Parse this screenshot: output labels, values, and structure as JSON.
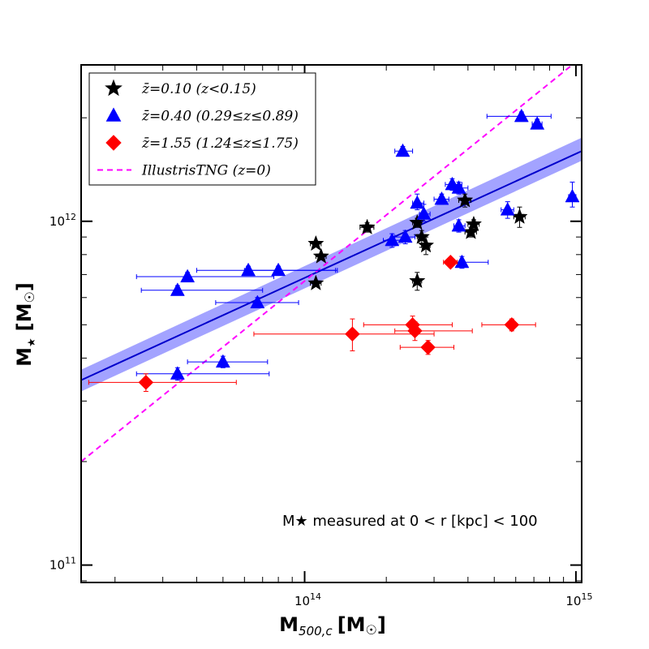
{
  "chart_data": {
    "type": "scatter",
    "xscale": "log",
    "yscale": "log",
    "xlim": [
      15000000000000.0,
      1050000000000000.0
    ],
    "ylim": [
      89000000000.0,
      2850000000000.0
    ],
    "xlabel_main": "M",
    "xlabel_sub": "500,c",
    "xlabel_unit": "[M",
    "xlabel_close": "]",
    "ylabel_main": "M",
    "ylabel_sub": "★",
    "ylabel_unit": "[M",
    "ylabel_close": "]",
    "xtick_labels": [
      {
        "value": 100000000000000.0,
        "base": "10",
        "exp": "14"
      },
      {
        "value": 1000000000000000.0,
        "base": "10",
        "exp": "15"
      }
    ],
    "ytick_labels": [
      {
        "value": 100000000000.0,
        "base": "10",
        "exp": "11"
      },
      {
        "value": 1000000000000.0,
        "base": "10",
        "exp": "12"
      }
    ],
    "annotation": "M★ measured at 0 < r [kpc] < 100",
    "legend": [
      {
        "label": "z̄=0.10 (z<0.15)",
        "marker": "star",
        "color": "#000000"
      },
      {
        "label": "z̄=0.40 (0.29≤z≤0.89)",
        "marker": "triangle",
        "color": "#0000ff"
      },
      {
        "label": "z̄=1.55 (1.24≤z≤1.75)",
        "marker": "diamond",
        "color": "#ff0000"
      },
      {
        "label": "IllustrisTNG (z=0)",
        "marker": "dashed-line",
        "color": "#ff00ff"
      }
    ],
    "series": [
      {
        "name": "z̄=0.10 (z<0.15)",
        "marker": "star",
        "color": "#000000",
        "points": [
          {
            "x": 110000000000000.0,
            "y": 860000000000.0,
            "xerr": [
              5000000000000.0,
              5000000000000.0
            ],
            "yerr": [
              3000000000.0,
              3000000000.0
            ]
          },
          {
            "x": 115000000000000.0,
            "y": 790000000000.0,
            "xerr": [
              5000000000000.0,
              5000000000000.0
            ],
            "yerr": [
              3000000000.0,
              3000000000.0
            ]
          },
          {
            "x": 110000000000000.0,
            "y": 660000000000.0,
            "xerr": [
              5000000000000.0,
              5000000000000.0
            ],
            "yerr": [
              3000000000.0,
              3000000000.0
            ]
          },
          {
            "x": 170000000000000.0,
            "y": 960000000000.0,
            "xerr": [
              10000000000000.0,
              10000000000000.0
            ],
            "yerr": [
              30000000000.0,
              30000000000.0
            ]
          },
          {
            "x": 260000000000000.0,
            "y": 990000000000.0,
            "xerr": [
              10000000000000.0,
              10000000000000.0
            ],
            "yerr": [
              30000000000.0,
              30000000000.0
            ]
          },
          {
            "x": 270000000000000.0,
            "y": 900000000000.0,
            "xerr": [
              10000000000000.0,
              10000000000000.0
            ],
            "yerr": [
              60000000000.0,
              40000000000.0
            ]
          },
          {
            "x": 280000000000000.0,
            "y": 850000000000.0,
            "xerr": [
              10000000000000.0,
              10000000000000.0
            ],
            "yerr": [
              50000000000.0,
              50000000000.0
            ]
          },
          {
            "x": 260000000000000.0,
            "y": 670000000000.0,
            "xerr": [
              10000000000000.0,
              10000000000000.0
            ],
            "yerr": [
              40000000000.0,
              40000000000.0
            ]
          },
          {
            "x": 390000000000000.0,
            "y": 1150000000000.0,
            "xerr": [
              20000000000000.0,
              20000000000000.0
            ],
            "yerr": [
              50000000000.0,
              50000000000.0
            ]
          },
          {
            "x": 420000000000000.0,
            "y": 980000000000.0,
            "xerr": [
              20000000000000.0,
              20000000000000.0
            ],
            "yerr": [
              30000000000.0,
              30000000000.0
            ]
          },
          {
            "x": 410000000000000.0,
            "y": 930000000000.0,
            "xerr": [
              20000000000000.0,
              20000000000000.0
            ],
            "yerr": [
              30000000000.0,
              30000000000.0
            ]
          },
          {
            "x": 620000000000000.0,
            "y": 1030000000000.0,
            "xerr": [
              30000000000000.0,
              30000000000000.0
            ],
            "yerr": [
              70000000000.0,
              70000000000.0
            ]
          }
        ]
      },
      {
        "name": "z̄=0.40 (0.29≤z≤0.89)",
        "marker": "triangle",
        "color": "#0000ff",
        "points": [
          {
            "x": 34000000000000.0,
            "y": 630000000000.0,
            "xerr": [
              9000000000000.0,
              36000000000000.0
            ],
            "yerr": [
              20000000000.0,
              20000000000.0
            ]
          },
          {
            "x": 37000000000000.0,
            "y": 690000000000.0,
            "xerr": [
              13000000000000.0,
              40000000000000.0
            ],
            "yerr": [
              20000000000.0,
              20000000000.0
            ]
          },
          {
            "x": 62000000000000.0,
            "y": 720000000000.0,
            "xerr": [
              22000000000000.0,
              70000000000000.0
            ],
            "yerr": [
              20000000000.0,
              20000000000.0
            ]
          },
          {
            "x": 80000000000000.0,
            "y": 720000000000.0,
            "xerr": [
              20000000000000.0,
              50000000000000.0
            ],
            "yerr": [
              20000000000.0,
              20000000000.0
            ]
          },
          {
            "x": 67000000000000.0,
            "y": 580000000000.0,
            "xerr": [
              20000000000000.0,
              28000000000000.0
            ],
            "yerr": [
              20000000000.0,
              20000000000.0
            ]
          },
          {
            "x": 34000000000000.0,
            "y": 360000000000.0,
            "xerr": [
              10000000000000.0,
              40000000000000.0
            ],
            "yerr": [
              15000000000.0,
              15000000000.0
            ]
          },
          {
            "x": 50000000000000.0,
            "y": 390000000000.0,
            "xerr": [
              13000000000000.0,
              23000000000000.0
            ],
            "yerr": [
              15000000000.0,
              15000000000.0
            ]
          },
          {
            "x": 230000000000000.0,
            "y": 1600000000000.0,
            "xerr": [
              15000000000000.0,
              20000000000000.0
            ],
            "yerr": [
              50000000000.0,
              50000000000.0
            ]
          },
          {
            "x": 210000000000000.0,
            "y": 880000000000.0,
            "xerr": [
              15000000000000.0,
              20000000000000.0
            ],
            "yerr": [
              40000000000.0,
              40000000000.0
            ]
          },
          {
            "x": 235000000000000.0,
            "y": 900000000000.0,
            "xerr": [
              20000000000000.0,
              20000000000000.0
            ],
            "yerr": [
              40000000000.0,
              40000000000.0
            ]
          },
          {
            "x": 260000000000000.0,
            "y": 1130000000000.0,
            "xerr": [
              10000000000000.0,
              15000000000000.0
            ],
            "yerr": [
              50000000000.0,
              70000000000.0
            ]
          },
          {
            "x": 275000000000000.0,
            "y": 1050000000000.0,
            "xerr": [
              10000000000000.0,
              15000000000000.0
            ],
            "yerr": [
              50000000000.0,
              70000000000.0
            ]
          },
          {
            "x": 320000000000000.0,
            "y": 1160000000000.0,
            "xerr": [
              20000000000000.0,
              20000000000000.0
            ],
            "yerr": [
              40000000000.0,
              40000000000.0
            ]
          },
          {
            "x": 350000000000000.0,
            "y": 1280000000000.0,
            "xerr": [
              20000000000000.0,
              30000000000000.0
            ],
            "yerr": [
              50000000000.0,
              50000000000.0
            ]
          },
          {
            "x": 370000000000000.0,
            "y": 1250000000000.0,
            "xerr": [
              20000000000000.0,
              30000000000000.0
            ],
            "yerr": [
              50000000000.0,
              50000000000.0
            ]
          },
          {
            "x": 370000000000000.0,
            "y": 970000000000.0,
            "xerr": [
              15000000000000.0,
              20000000000000.0
            ],
            "yerr": [
              40000000000.0,
              40000000000.0
            ]
          },
          {
            "x": 380000000000000.0,
            "y": 760000000000.0,
            "xerr": [
              30000000000000.0,
              95000000000000.0
            ],
            "yerr": [
              30000000000.0,
              30000000000.0
            ]
          },
          {
            "x": 560000000000000.0,
            "y": 1080000000000.0,
            "xerr": [
              30000000000000.0,
              30000000000000.0
            ],
            "yerr": [
              60000000000.0,
              60000000000.0
            ]
          },
          {
            "x": 630000000000000.0,
            "y": 2020000000000.0,
            "xerr": [
              160000000000000.0,
              180000000000000.0
            ],
            "yerr": [
              60000000000.0,
              60000000000.0
            ]
          },
          {
            "x": 720000000000000.0,
            "y": 1920000000000.0,
            "xerr": [
              30000000000000.0,
              30000000000000.0
            ],
            "yerr": [
              60000000000.0,
              60000000000.0
            ]
          },
          {
            "x": 970000000000000.0,
            "y": 1180000000000.0,
            "xerr": [
              30000000000000.0,
              30000000000000.0
            ],
            "yerr": [
              80000000000.0,
              120000000000.0
            ]
          }
        ]
      },
      {
        "name": "z̄=1.55 (1.24≤z≤1.75)",
        "marker": "diamond",
        "color": "#ff0000",
        "points": [
          {
            "x": 26000000000000.0,
            "y": 340000000000.0,
            "xerr": [
              10000000000000.0,
              30000000000000.0
            ],
            "yerr": [
              20000000000.0,
              20000000000.0
            ]
          },
          {
            "x": 150000000000000.0,
            "y": 470000000000.0,
            "xerr": [
              85000000000000.0,
              150000000000000.0
            ],
            "yerr": [
              50000000000.0,
              50000000000.0
            ]
          },
          {
            "x": 250000000000000.0,
            "y": 500000000000.0,
            "xerr": [
              85000000000000.0,
              100000000000000.0
            ],
            "yerr": [
              30000000000.0,
              30000000000.0
            ]
          },
          {
            "x": 255000000000000.0,
            "y": 480000000000.0,
            "xerr": [
              40000000000000.0,
              160000000000000.0
            ],
            "yerr": [
              30000000000.0,
              30000000000.0
            ]
          },
          {
            "x": 285000000000000.0,
            "y": 430000000000.0,
            "xerr": [
              60000000000000.0,
              70000000000000.0
            ],
            "yerr": [
              20000000000.0,
              20000000000.0
            ]
          },
          {
            "x": 345000000000000.0,
            "y": 760000000000.0,
            "xerr": [
              20000000000000.0,
              20000000000000.0
            ],
            "yerr": [
              20000000000.0,
              20000000000.0
            ]
          },
          {
            "x": 580000000000000.0,
            "y": 500000000000.0,
            "xerr": [
              130000000000000.0,
              130000000000000.0
            ],
            "yerr": [
              20000000000.0,
              20000000000.0
            ]
          }
        ]
      }
    ],
    "fit_line": {
      "color": "#0000cc",
      "band_color": "#6666ff",
      "x": [
        15000000000000.0,
        1050000000000000.0
      ],
      "y": [
        345000000000.0,
        1600000000000.0
      ],
      "band_lo": [
        320000000000.0,
        1500000000000.0
      ],
      "band_hi": [
        370000000000.0,
        1750000000000.0
      ]
    },
    "tng_line": {
      "color": "#ff00ff",
      "style": "dashed",
      "x": [
        15000000000000.0,
        1050000000000000.0
      ],
      "y": [
        200000000000.0,
        3000000000000.0
      ]
    }
  }
}
